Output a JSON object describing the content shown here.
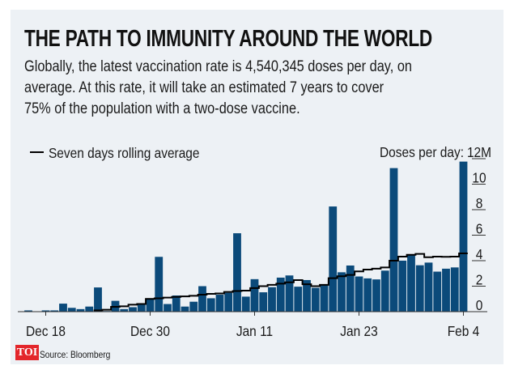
{
  "chart_data": {
    "type": "bar",
    "title": "THE PATH TO IMMUNITY AROUND THE WORLD",
    "subtitle": [
      "Globally, the latest vaccination rate is 4,540,345 doses per day, on",
      "average. At this rate, it will take an estimated 7 years to cover",
      "75% of the population with a two-dose vaccine."
    ],
    "ylabel": "Doses per day:",
    "ylim": [
      0,
      12
    ],
    "yticks": [
      "0",
      "2",
      "4",
      "6",
      "8",
      "10",
      "12M"
    ],
    "xticks": [
      "Dec 18",
      "Dec 30",
      "Jan 11",
      "Jan 23",
      "Feb 4"
    ],
    "x_start": "Dec 16",
    "x_end": "Feb 4",
    "legend": {
      "label": "Seven days rolling average",
      "placement": "top-left"
    },
    "bar_color": "#0b4a7a",
    "line_color": "#000000",
    "series": [
      {
        "type": "bar",
        "values": [
          0.1,
          0,
          0.1,
          0.1,
          0.63,
          0.3,
          0.2,
          0.4,
          1.9,
          0.05,
          0.85,
          0.2,
          0.35,
          0.55,
          1.05,
          4.3,
          0.6,
          1.27,
          0.4,
          0.78,
          2.0,
          1.05,
          1.33,
          1.48,
          6.15,
          1.18,
          2.55,
          1.52,
          1.92,
          2.67,
          2.84,
          1.96,
          2.48,
          1.87,
          2.1,
          8.25,
          3.09,
          3.62,
          2.76,
          2.61,
          2.53,
          3.22,
          11.26,
          4.0,
          4.42,
          3.64,
          3.85,
          3.14,
          3.37,
          3.47,
          11.77
        ]
      },
      {
        "type": "line",
        "name": "Seven days rolling average",
        "values": [
          null,
          null,
          null,
          null,
          null,
          null,
          null,
          null,
          0.1,
          0.15,
          0.38,
          0.42,
          0.55,
          0.6,
          1.0,
          1.05,
          1.1,
          1.16,
          1.2,
          1.25,
          1.33,
          1.4,
          1.43,
          1.55,
          1.62,
          1.65,
          1.85,
          2.0,
          2.1,
          2.2,
          2.3,
          2.48,
          2.15,
          2.0,
          2.1,
          2.63,
          2.78,
          2.88,
          3.16,
          3.3,
          3.37,
          3.47,
          4.0,
          4.32,
          4.46,
          4.53,
          4.27,
          4.32,
          4.3,
          4.32,
          4.57
        ]
      }
    ]
  },
  "footer": {
    "logo": "TOI",
    "source": "Source: Bloomberg"
  }
}
